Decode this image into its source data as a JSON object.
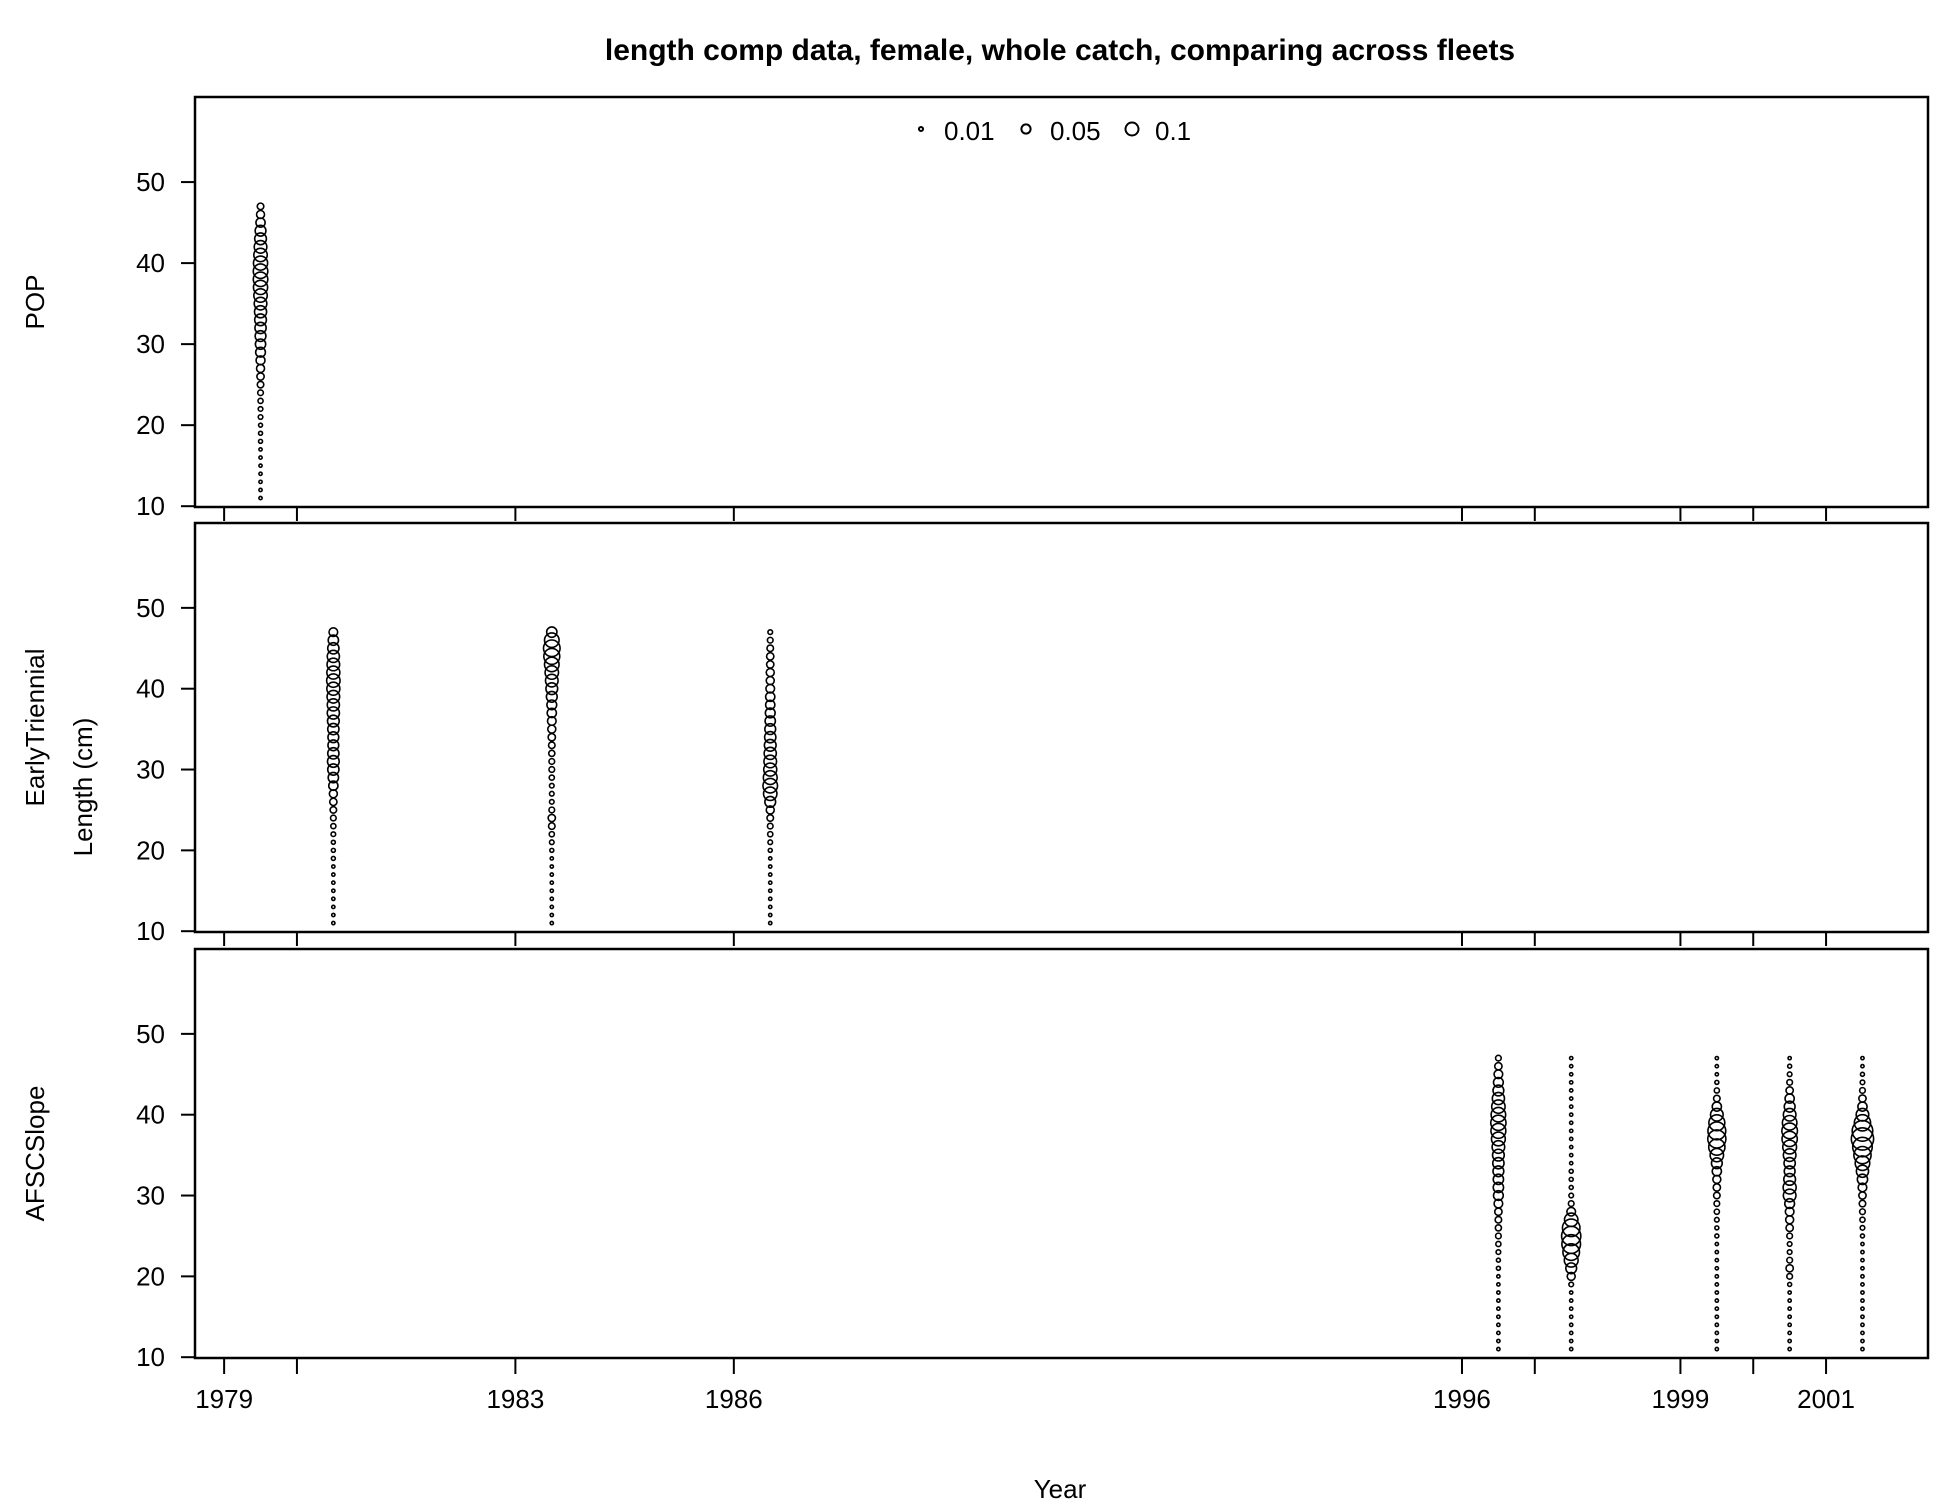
{
  "chart_data": {
    "type": "scatter",
    "subtype": "bubble",
    "title": "length comp data, female, whole catch, comparing across fleets",
    "xlabel": "Year",
    "ylabel": "Length (cm)",
    "x_ticks": [
      1979,
      1983,
      1986,
      1996,
      1999,
      2001
    ],
    "x_minor_ticks": [
      1980,
      1997,
      2000
    ],
    "xlim": [
      1978.6,
      2002.4
    ],
    "y_ticks": [
      10,
      20,
      30,
      40,
      50
    ],
    "ylim": [
      9.9,
      60.5
    ],
    "grid": false,
    "legend": {
      "placement": "top-center",
      "entries": [
        {
          "label": "0.01",
          "value": 0.01
        },
        {
          "label": "0.05",
          "value": 0.05
        },
        {
          "label": "0.1",
          "value": 0.1
        }
      ]
    },
    "length_bins": [
      11,
      12,
      13,
      14,
      15,
      16,
      17,
      18,
      19,
      20,
      21,
      22,
      23,
      24,
      25,
      26,
      27,
      28,
      29,
      30,
      31,
      32,
      33,
      34,
      35,
      36,
      37,
      38,
      39,
      40,
      41,
      42,
      43,
      44,
      45,
      46,
      47
    ],
    "panels": [
      {
        "name": "POP",
        "series": [
          {
            "year": 1979.5,
            "proportions": [
              0.002,
              0.002,
              0.002,
              0.002,
              0.002,
              0.002,
              0.002,
              0.003,
              0.003,
              0.003,
              0.004,
              0.004,
              0.005,
              0.006,
              0.008,
              0.01,
              0.012,
              0.015,
              0.018,
              0.02,
              0.022,
              0.024,
              0.026,
              0.028,
              0.03,
              0.034,
              0.038,
              0.04,
              0.04,
              0.038,
              0.034,
              0.03,
              0.026,
              0.022,
              0.016,
              0.012,
              0.008
            ]
          }
        ]
      },
      {
        "name": "EarlyTriennial",
        "series": [
          {
            "year": 1980.5,
            "proportions": [
              0.002,
              0.002,
              0.002,
              0.002,
              0.002,
              0.002,
              0.002,
              0.002,
              0.003,
              0.003,
              0.003,
              0.004,
              0.005,
              0.006,
              0.008,
              0.01,
              0.012,
              0.016,
              0.02,
              0.024,
              0.026,
              0.024,
              0.022,
              0.022,
              0.024,
              0.026,
              0.028,
              0.028,
              0.03,
              0.032,
              0.034,
              0.032,
              0.03,
              0.028,
              0.024,
              0.02,
              0.014
            ]
          },
          {
            "year": 1983.5,
            "proportions": [
              0.002,
              0.002,
              0.002,
              0.002,
              0.002,
              0.002,
              0.002,
              0.002,
              0.002,
              0.003,
              0.004,
              0.005,
              0.008,
              0.01,
              0.006,
              0.004,
              0.004,
              0.004,
              0.005,
              0.006,
              0.006,
              0.007,
              0.008,
              0.01,
              0.012,
              0.014,
              0.016,
              0.018,
              0.022,
              0.026,
              0.03,
              0.034,
              0.04,
              0.048,
              0.052,
              0.04,
              0.02
            ]
          },
          {
            "year": 1986.5,
            "proportions": [
              0.002,
              0.002,
              0.002,
              0.002,
              0.002,
              0.002,
              0.002,
              0.002,
              0.002,
              0.003,
              0.004,
              0.005,
              0.006,
              0.008,
              0.012,
              0.022,
              0.034,
              0.04,
              0.036,
              0.032,
              0.03,
              0.028,
              0.026,
              0.024,
              0.022,
              0.02,
              0.018,
              0.016,
              0.016,
              0.014,
              0.012,
              0.012,
              0.01,
              0.01,
              0.008,
              0.006,
              0.004
            ]
          }
        ]
      },
      {
        "name": "AFSCSlope",
        "series": [
          {
            "year": 1996.5,
            "proportions": [
              0.002,
              0.002,
              0.002,
              0.002,
              0.002,
              0.002,
              0.002,
              0.002,
              0.002,
              0.002,
              0.003,
              0.003,
              0.004,
              0.005,
              0.006,
              0.007,
              0.008,
              0.01,
              0.014,
              0.018,
              0.02,
              0.02,
              0.022,
              0.024,
              0.026,
              0.03,
              0.036,
              0.042,
              0.044,
              0.04,
              0.034,
              0.028,
              0.022,
              0.018,
              0.014,
              0.01,
              0.006
            ]
          },
          {
            "year": 1997.5,
            "proportions": [
              0.002,
              0.002,
              0.002,
              0.002,
              0.002,
              0.002,
              0.002,
              0.002,
              0.004,
              0.012,
              0.022,
              0.036,
              0.052,
              0.066,
              0.07,
              0.058,
              0.034,
              0.014,
              0.006,
              0.004,
              0.003,
              0.003,
              0.003,
              0.002,
              0.002,
              0.002,
              0.002,
              0.002,
              0.002,
              0.002,
              0.002,
              0.002,
              0.002,
              0.002,
              0.002,
              0.002,
              0.002
            ]
          },
          {
            "year": 1999.5,
            "proportions": [
              0.002,
              0.002,
              0.002,
              0.002,
              0.002,
              0.002,
              0.002,
              0.002,
              0.002,
              0.002,
              0.002,
              0.002,
              0.002,
              0.002,
              0.003,
              0.003,
              0.004,
              0.005,
              0.006,
              0.008,
              0.01,
              0.012,
              0.016,
              0.022,
              0.034,
              0.05,
              0.062,
              0.06,
              0.048,
              0.03,
              0.016,
              0.008,
              0.005,
              0.003,
              0.002,
              0.002,
              0.002
            ]
          },
          {
            "year": 2000.5,
            "proportions": [
              0.002,
              0.002,
              0.002,
              0.002,
              0.002,
              0.002,
              0.002,
              0.002,
              0.003,
              0.006,
              0.01,
              0.006,
              0.004,
              0.004,
              0.006,
              0.01,
              0.012,
              0.014,
              0.018,
              0.03,
              0.032,
              0.026,
              0.022,
              0.024,
              0.03,
              0.036,
              0.044,
              0.046,
              0.04,
              0.03,
              0.022,
              0.016,
              0.01,
              0.006,
              0.004,
              0.003,
              0.002
            ]
          },
          {
            "year": 2001.5,
            "proportions": [
              0.002,
              0.002,
              0.002,
              0.002,
              0.002,
              0.002,
              0.002,
              0.002,
              0.002,
              0.002,
              0.002,
              0.002,
              0.002,
              0.002,
              0.003,
              0.004,
              0.005,
              0.006,
              0.008,
              0.01,
              0.014,
              0.02,
              0.028,
              0.04,
              0.056,
              0.072,
              0.094,
              0.08,
              0.05,
              0.03,
              0.016,
              0.01,
              0.006,
              0.004,
              0.003,
              0.002,
              0.002
            ]
          }
        ]
      }
    ]
  }
}
